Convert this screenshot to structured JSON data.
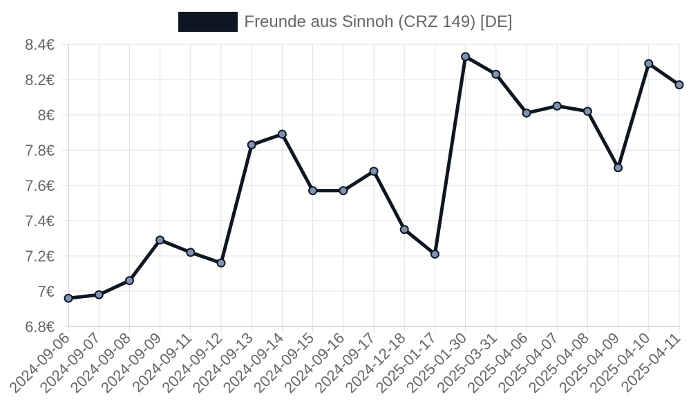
{
  "chart_data": {
    "type": "line",
    "categories": [
      "2024-09-06",
      "2024-09-07",
      "2024-09-08",
      "2024-09-09",
      "2024-09-11",
      "2024-09-12",
      "2024-09-13",
      "2024-09-14",
      "2024-09-15",
      "2024-09-16",
      "2024-09-17",
      "2024-12-18",
      "2025-01-17",
      "2025-01-30",
      "2025-03-31",
      "2025-04-06",
      "2025-04-07",
      "2025-04-08",
      "2025-04-09",
      "2025-04-10",
      "2025-04-11"
    ],
    "series": [
      {
        "name": "Freunde aus Sinnoh (CRZ 149) [DE]",
        "values": [
          6.96,
          6.98,
          7.06,
          7.29,
          7.22,
          7.16,
          7.83,
          7.89,
          7.57,
          7.57,
          7.68,
          7.35,
          7.21,
          8.33,
          8.23,
          8.01,
          8.05,
          8.02,
          7.7,
          8.29,
          8.17
        ]
      }
    ],
    "ylim": [
      6.8,
      8.4
    ],
    "yticks": [
      "8.4€",
      "8.2€",
      "8€",
      "7.8€",
      "7.6€",
      "7.4€",
      "7.2€",
      "7€",
      "6.8€"
    ],
    "ytick_values": [
      8.4,
      8.2,
      8.0,
      7.8,
      7.6,
      7.4,
      7.2,
      7.0,
      6.8
    ],
    "grid": true,
    "legend_position": "top-center",
    "colors": {
      "line": "#0f1621",
      "point_fill": "#7e93b3",
      "grid": "#e0e0e0",
      "axis": "#bdbdbd"
    }
  }
}
